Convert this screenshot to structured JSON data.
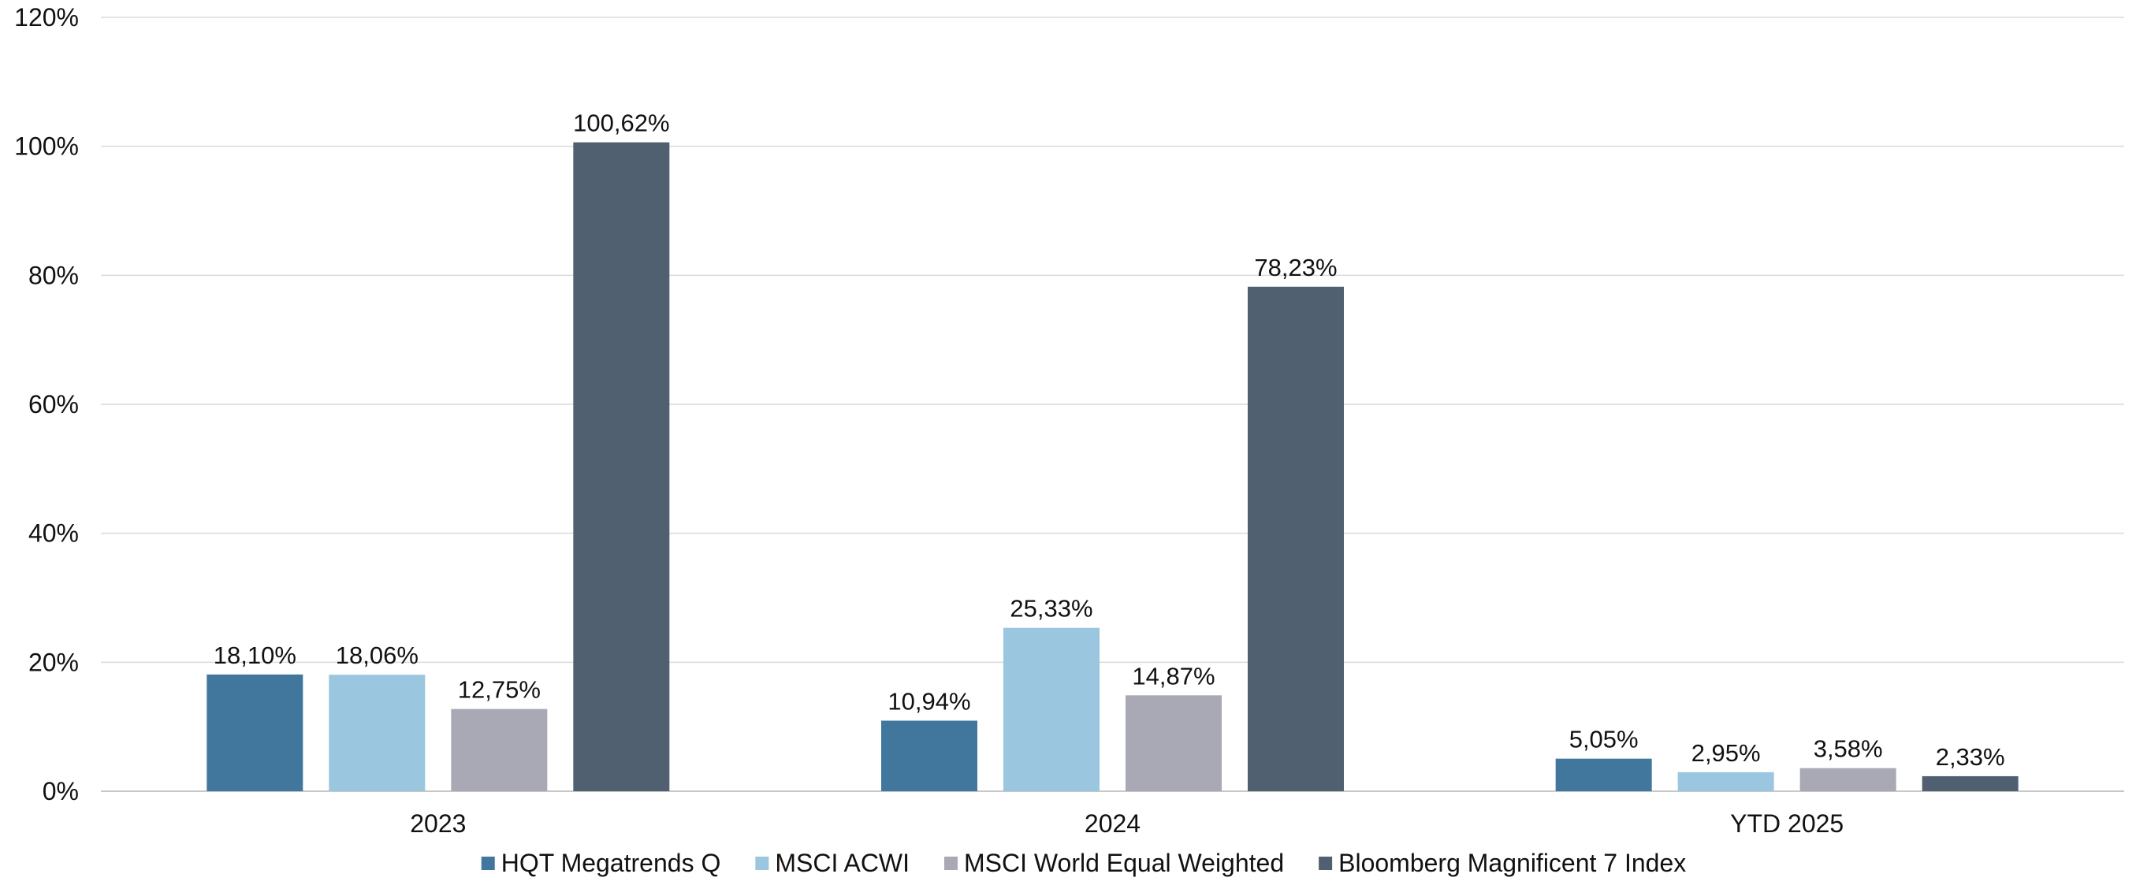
{
  "chart_data": {
    "type": "bar",
    "categories": [
      "2023",
      "2024",
      "YTD 2025"
    ],
    "series": [
      {
        "name": "HQT Megatrends Q",
        "color": "#41779c",
        "values": [
          18.1,
          10.94,
          5.05
        ],
        "labels": [
          "18,10%",
          "10,94%",
          "5,05%"
        ]
      },
      {
        "name": "MSCI ACWI",
        "color": "#9bc6df",
        "values": [
          18.06,
          25.33,
          2.95
        ],
        "labels": [
          "18,06%",
          "25,33%",
          "2,95%"
        ]
      },
      {
        "name": "MSCI World Equal Weighted",
        "color": "#a9a9b5",
        "values": [
          12.75,
          14.87,
          3.58
        ],
        "labels": [
          "12,75%",
          "14,87%",
          "3,58%"
        ]
      },
      {
        "name": "Bloomberg Magnificent 7 Index",
        "color": "#506071",
        "values": [
          100.62,
          78.23,
          2.33
        ],
        "labels": [
          "100,62%",
          "78,23%",
          "2,33%"
        ]
      }
    ],
    "ylim": [
      0,
      120
    ],
    "yticks": [
      0,
      20,
      40,
      60,
      80,
      100,
      120
    ],
    "ytick_labels": [
      "0%",
      "20%",
      "40%",
      "60%",
      "80%",
      "100%",
      "120%"
    ],
    "grid": true,
    "legend_position": "bottom",
    "title": "",
    "xlabel": "",
    "ylabel": ""
  }
}
